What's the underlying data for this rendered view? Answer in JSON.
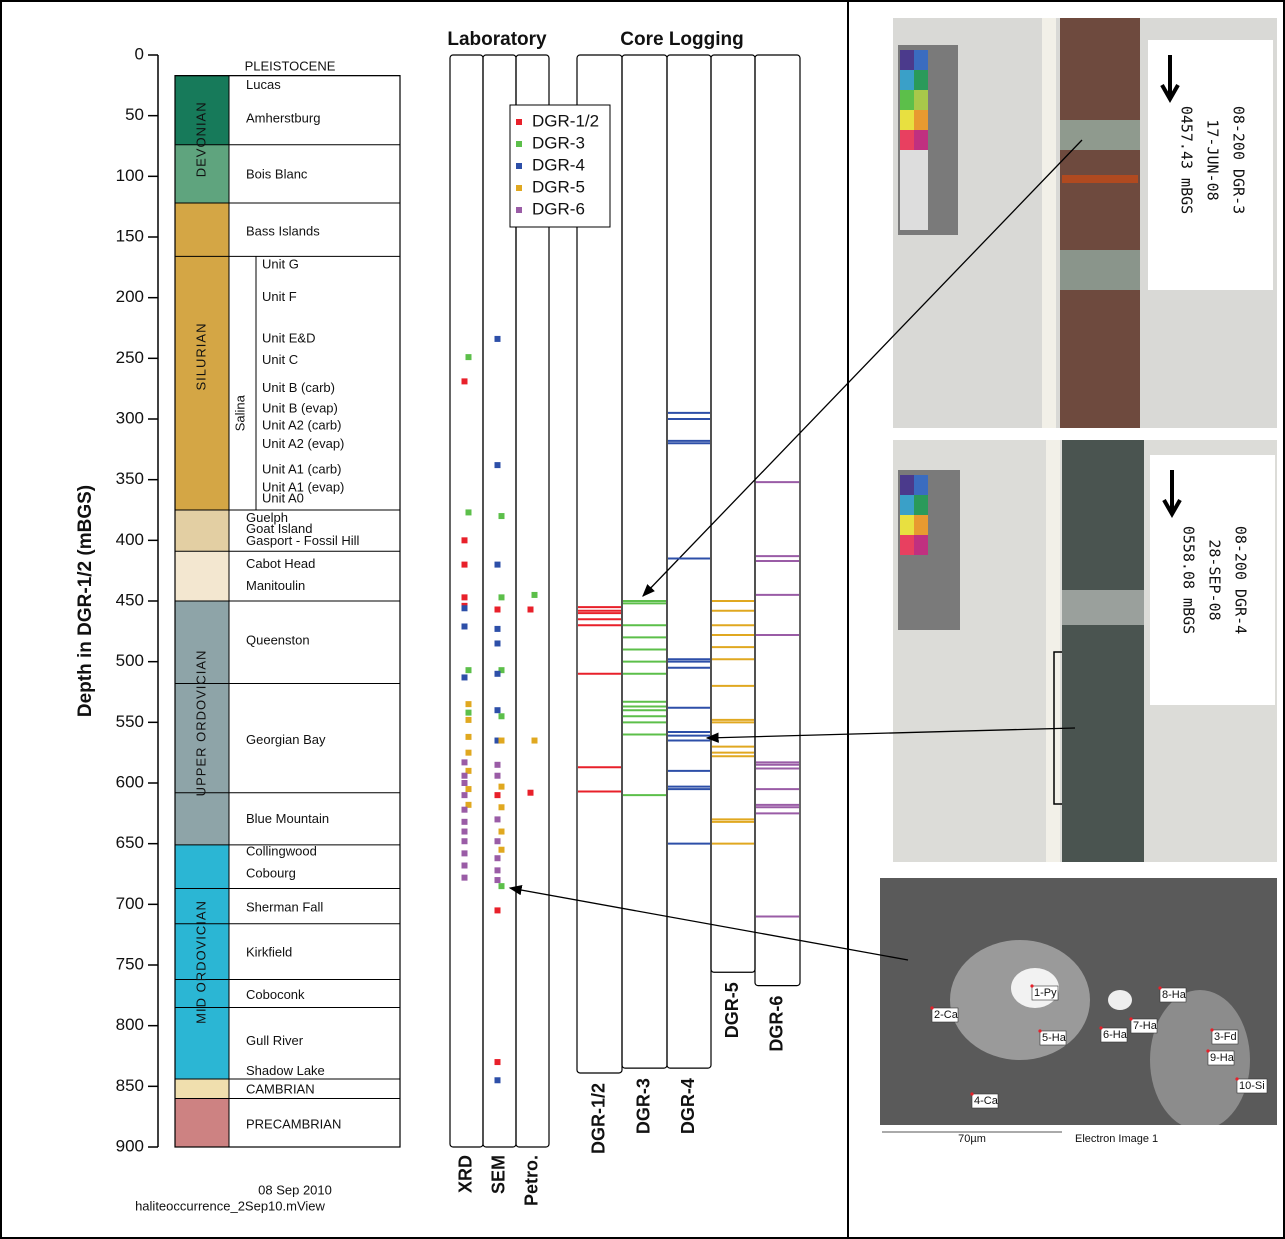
{
  "chart_data": {
    "type": "strip",
    "y_label": "Depth in DGR-1/2 (mBGS)",
    "ylim": [
      0,
      900
    ],
    "yticks": [
      0,
      50,
      100,
      150,
      200,
      250,
      300,
      350,
      400,
      450,
      500,
      550,
      600,
      650,
      700,
      750,
      800,
      850,
      900
    ],
    "color_bands": [
      {
        "top": 17,
        "bottom": 74,
        "color": "#177a5a"
      },
      {
        "top": 74,
        "bottom": 122,
        "color": "#5fa47e"
      },
      {
        "top": 122,
        "bottom": 375,
        "color": "#d4a645"
      },
      {
        "top": 375,
        "bottom": 409,
        "color": "#e3cfa3"
      },
      {
        "top": 409,
        "bottom": 450,
        "color": "#f3e7d0"
      },
      {
        "top": 450,
        "bottom": 651,
        "color": "#8ea4a8"
      },
      {
        "top": 651,
        "bottom": 844,
        "color": "#2bb6d4"
      },
      {
        "top": 844,
        "bottom": 860,
        "color": "#f0dfae"
      },
      {
        "top": 860,
        "bottom": 900,
        "color": "#cd8282"
      }
    ],
    "systems": [
      {
        "name": "DEVONIAN",
        "top": 17,
        "bottom": 122
      },
      {
        "name": "SILURIAN",
        "top": 122,
        "bottom": 375
      },
      {
        "name": "UPPER ORDOVICIAN",
        "top": 450,
        "bottom": 651
      },
      {
        "name": "MID ORDOVICIAN",
        "top": 651,
        "bottom": 844
      }
    ],
    "boundaries": [
      17,
      74,
      122,
      166,
      375,
      409,
      450,
      518,
      608,
      651,
      687,
      716,
      762,
      785,
      844,
      860
    ],
    "formations": [
      {
        "name": "PLEISTOCENE",
        "depth": 10
      },
      {
        "name": "Lucas",
        "depth": 25
      },
      {
        "name": "Amherstburg",
        "depth": 53
      },
      {
        "name": "Bois Blanc",
        "depth": 99
      },
      {
        "name": "Bass Islands",
        "depth": 146
      },
      {
        "name": "Guelph",
        "depth": 382
      },
      {
        "name": "Goat Island",
        "depth": 391
      },
      {
        "name": "Gasport - Fossil Hill",
        "depth": 401
      },
      {
        "name": "Cabot Head",
        "depth": 420
      },
      {
        "name": "Manitoulin",
        "depth": 438
      },
      {
        "name": "Queenston",
        "depth": 483
      },
      {
        "name": "Georgian Bay",
        "depth": 565
      },
      {
        "name": "Blue Mountain",
        "depth": 630
      },
      {
        "name": "Collingwood",
        "depth": 657
      },
      {
        "name": "Cobourg",
        "depth": 675
      },
      {
        "name": "Sherman Fall",
        "depth": 703
      },
      {
        "name": "Kirkfield",
        "depth": 740
      },
      {
        "name": "Coboconk",
        "depth": 775
      },
      {
        "name": "Gull River",
        "depth": 813
      },
      {
        "name": "Shadow Lake",
        "depth": 838
      },
      {
        "name": "CAMBRIAN",
        "depth": 853
      },
      {
        "name": "PRECAMBRIAN",
        "depth": 882
      }
    ],
    "salina": {
      "name": "Salina",
      "top": 166,
      "bottom": 375,
      "units": [
        {
          "name": "Unit G",
          "depth": 173
        },
        {
          "name": "Unit F",
          "depth": 200
        },
        {
          "name": "Unit E&D",
          "depth": 234
        },
        {
          "name": "Unit C",
          "depth": 252
        },
        {
          "name": "Unit B (carb)",
          "depth": 275
        },
        {
          "name": "Unit B (evap)",
          "depth": 292
        },
        {
          "name": "Unit A2 (carb)",
          "depth": 306
        },
        {
          "name": "Unit A2 (evap)",
          "depth": 321
        },
        {
          "name": "Unit A1 (carb)",
          "depth": 342
        },
        {
          "name": "Unit A1 (evap)",
          "depth": 357
        },
        {
          "name": "Unit A0",
          "depth": 366
        }
      ]
    },
    "lab_title": "Laboratory",
    "core_title": "Core Logging",
    "series": [
      {
        "name": "DGR-1/2",
        "color": "#e8202a"
      },
      {
        "name": "DGR-3",
        "color": "#5cbf4a"
      },
      {
        "name": "DGR-4",
        "color": "#2d4fa8"
      },
      {
        "name": "DGR-5",
        "color": "#e0a820"
      },
      {
        "name": "DGR-6",
        "color": "#9a5ca6"
      }
    ],
    "lab_columns": [
      {
        "name": "XRD",
        "depths": [
          [
            269,
            400,
            420,
            447,
            454
          ],
          [
            249,
            377,
            507,
            542
          ],
          [
            456,
            471,
            513
          ],
          [
            535,
            548,
            562,
            575,
            590,
            605,
            618
          ],
          [
            583,
            594,
            600,
            610,
            622,
            632,
            640,
            648,
            658,
            668,
            678
          ]
        ]
      },
      {
        "name": "SEM",
        "depths": [
          [
            457,
            610,
            705,
            830
          ],
          [
            380,
            447,
            507,
            545,
            685
          ],
          [
            234,
            338,
            420,
            473,
            485,
            510,
            540,
            565,
            845
          ],
          [
            565,
            603,
            620,
            640,
            655
          ],
          [
            585,
            594,
            630,
            648,
            662,
            672,
            680
          ]
        ]
      },
      {
        "name": "Petro.",
        "depths": [
          [
            457,
            608
          ],
          [
            445
          ],
          [],
          [
            565
          ],
          []
        ]
      }
    ],
    "core_columns": [
      {
        "name": "DGR-1/2",
        "total_depth": 839,
        "depths": [
          455,
          458,
          460,
          465,
          470,
          510,
          587,
          607
        ]
      },
      {
        "name": "DGR-3",
        "total_depth": 835,
        "depths": [
          450,
          452,
          470,
          480,
          490,
          500,
          510,
          533,
          537,
          540,
          545,
          550,
          560,
          610
        ]
      },
      {
        "name": "DGR-4",
        "total_depth": 835,
        "depths": [
          295,
          300,
          318,
          320,
          415,
          498,
          500,
          505,
          538,
          558,
          561,
          565,
          590,
          603,
          605,
          650
        ]
      },
      {
        "name": "DGR-5",
        "total_depth": 756,
        "depths": [
          450,
          458,
          470,
          478,
          488,
          498,
          520,
          548,
          550,
          570,
          575,
          578,
          630,
          632,
          650
        ]
      },
      {
        "name": "DGR-6",
        "total_depth": 767,
        "depths": [
          352,
          413,
          417,
          445,
          478,
          583,
          585,
          588,
          605,
          618,
          620,
          625,
          710
        ]
      }
    ],
    "footer": [
      "08 Sep 2010",
      "haliteoccurrence_2Sep10.mView"
    ],
    "photos": [
      {
        "lines": [
          "08-200 DGR-3",
          "17-JUN-08",
          "0457.43 mBGS"
        ]
      },
      {
        "lines": [
          "08-200 DGR-4",
          "28-SEP-08",
          "0558.08 mBGS"
        ]
      }
    ],
    "sem_labels": [
      "1-Py",
      "2-Ca",
      "3-Fd",
      "4-Ca",
      "5-Ha",
      "6-Ha",
      "7-Ha",
      "8-Ha",
      "9-Ha",
      "10-Si"
    ],
    "sem_captions": [
      "70µm",
      "Electron Image 1"
    ]
  }
}
